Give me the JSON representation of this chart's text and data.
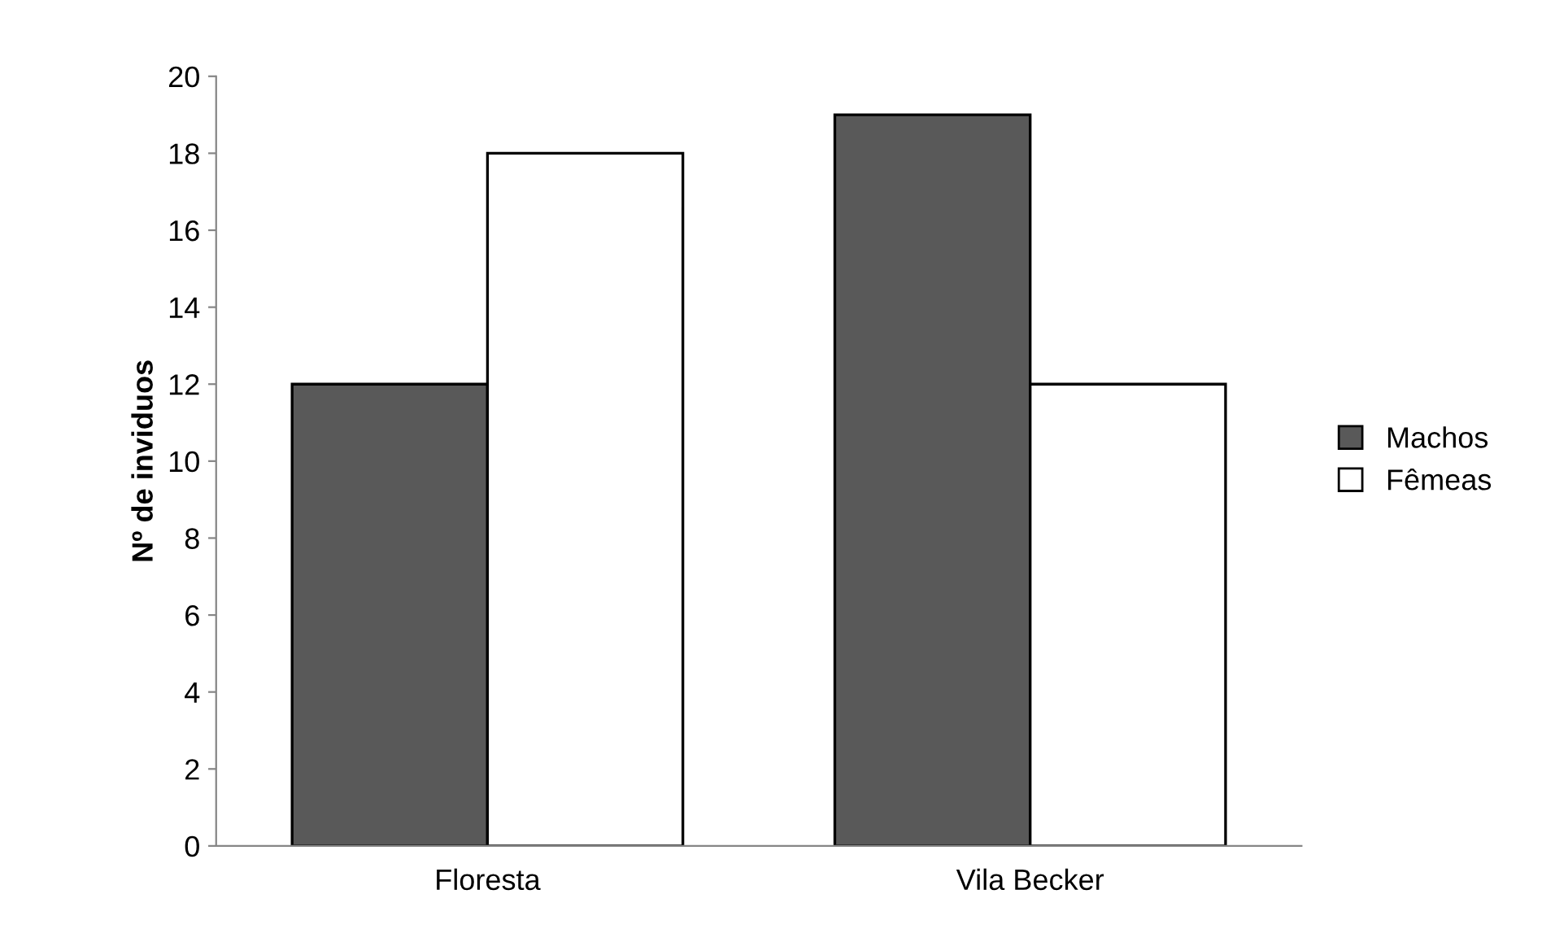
{
  "chart_data": {
    "type": "bar",
    "ylabel": "Nº de inviduos",
    "categories": [
      "Floresta",
      "Vila Becker"
    ],
    "series": [
      {
        "name": "Machos",
        "color": "#595959",
        "values": [
          12,
          19
        ]
      },
      {
        "name": "Fêmeas",
        "color": "#ffffff",
        "values": [
          18,
          12
        ]
      }
    ],
    "ylim": [
      0,
      20
    ],
    "yticks": [
      0,
      2,
      4,
      6,
      8,
      10,
      12,
      14,
      16,
      18,
      20
    ],
    "grid": false,
    "legend": "right"
  }
}
